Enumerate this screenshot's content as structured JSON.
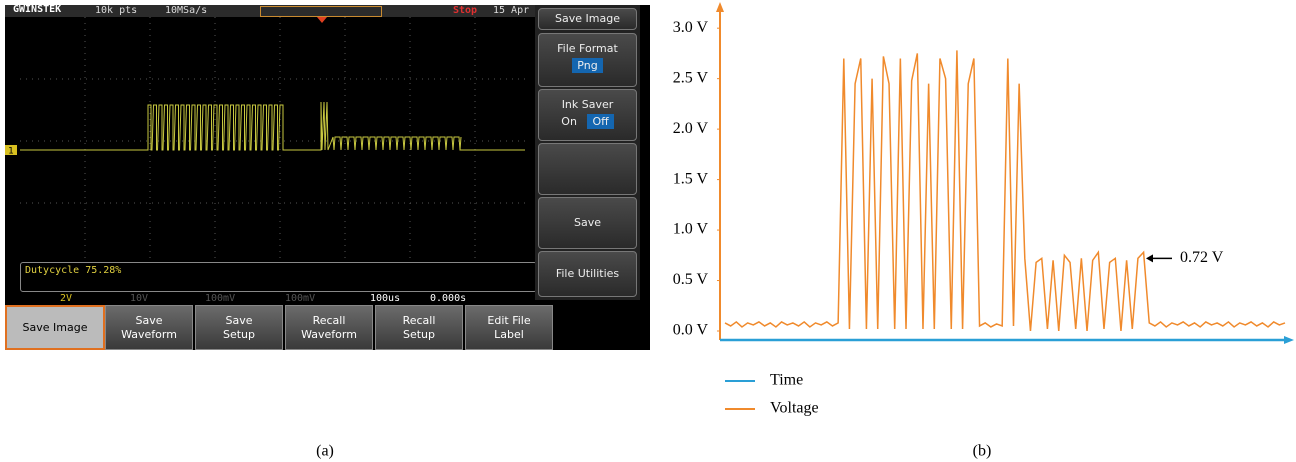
{
  "screenshot": {
    "brand": "GWINSTEK",
    "top_bar": [
      "10k pts",
      "10MSa/s",
      "Stop",
      "15 Apr"
    ],
    "menu": {
      "title": "Save Image",
      "file_format": {
        "label": "File Format",
        "value": "Png"
      },
      "ink_saver": {
        "label": "Ink Saver",
        "on": "On",
        "off": "Off"
      },
      "save": "Save",
      "file_utilities": "File Utilities"
    },
    "channel": "1",
    "measurement": "Dutycycle 75.28%",
    "status": [
      "2V",
      "10V",
      "100mV",
      "100mV",
      "100us",
      "0.000s"
    ],
    "buttons": [
      "Save Image",
      "Save Waveform",
      "Save Setup",
      "Recall Waveform",
      "Recall Setup",
      "Edit File Label"
    ],
    "label": "(a)"
  },
  "chart_data": {
    "type": "line",
    "label": "(b)",
    "x": [
      0,
      1,
      2,
      3,
      4,
      5,
      6,
      7,
      8,
      9,
      10,
      11,
      12,
      13,
      14,
      15,
      16,
      17,
      18,
      19,
      20,
      21,
      22,
      23,
      24,
      25,
      26,
      27,
      28,
      29,
      30,
      31,
      32,
      33,
      34,
      35,
      36,
      37,
      38,
      39,
      40,
      41,
      42,
      43,
      44,
      45,
      46,
      47,
      48,
      49,
      50,
      51,
      52,
      53,
      54,
      55,
      56,
      57,
      58,
      59,
      60,
      61,
      62,
      63,
      64,
      65,
      66,
      67,
      68,
      69,
      70,
      71,
      72,
      73,
      74,
      75,
      76,
      77,
      78,
      79,
      80,
      81,
      82,
      83,
      84,
      85,
      86,
      87,
      88,
      89,
      90,
      91,
      92,
      93,
      94,
      95,
      96,
      97,
      98,
      99
    ],
    "xlim": [
      0,
      99
    ],
    "ylim": [
      0,
      3.2
    ],
    "yticks": [
      {
        "value": 0,
        "label": "0.0 V"
      },
      {
        "value": 0.5,
        "label": "0.5 V"
      },
      {
        "value": 1,
        "label": "1.0 V"
      },
      {
        "value": 1.5,
        "label": "1.5 V"
      },
      {
        "value": 2,
        "label": "2.0 V"
      },
      {
        "value": 2.5,
        "label": "2.5 V"
      },
      {
        "value": 3,
        "label": "3.0 V"
      }
    ],
    "x_axis": {
      "name": "Time",
      "color": "#2a9fd6"
    },
    "series": [
      {
        "name": "Voltage",
        "color": "#f08a2c",
        "values": [
          0.08,
          0.05,
          0.09,
          0.04,
          0.08,
          0.06,
          0.09,
          0.05,
          0.08,
          0.04,
          0.09,
          0.06,
          0.08,
          0.05,
          0.09,
          0.04,
          0.08,
          0.06,
          0.09,
          0.05,
          0.08,
          2.7,
          0.02,
          2.45,
          2.7,
          0.02,
          2.5,
          0.02,
          2.72,
          2.45,
          0.02,
          2.7,
          0.02,
          2.48,
          2.75,
          0.02,
          2.45,
          0.02,
          2.7,
          2.5,
          0.02,
          2.78,
          0.02,
          2.45,
          2.7,
          0.05,
          0.08,
          0.04,
          0.07,
          0.05,
          2.7,
          0.05,
          2.45,
          0.72,
          0.0,
          0.68,
          0.72,
          0.02,
          0.7,
          0.0,
          0.75,
          0.68,
          0.02,
          0.72,
          0.0,
          0.7,
          0.78,
          0.02,
          0.68,
          0.72,
          0.0,
          0.7,
          0.02,
          0.72,
          0.78,
          0.08,
          0.05,
          0.09,
          0.04,
          0.08,
          0.06,
          0.09,
          0.05,
          0.08,
          0.04,
          0.09,
          0.06,
          0.08,
          0.05,
          0.09,
          0.04,
          0.08,
          0.06,
          0.09,
          0.05,
          0.08,
          0.04,
          0.09,
          0.06,
          0.08
        ]
      }
    ],
    "annotation": {
      "text": "0.72 V",
      "value": 0.72
    }
  }
}
